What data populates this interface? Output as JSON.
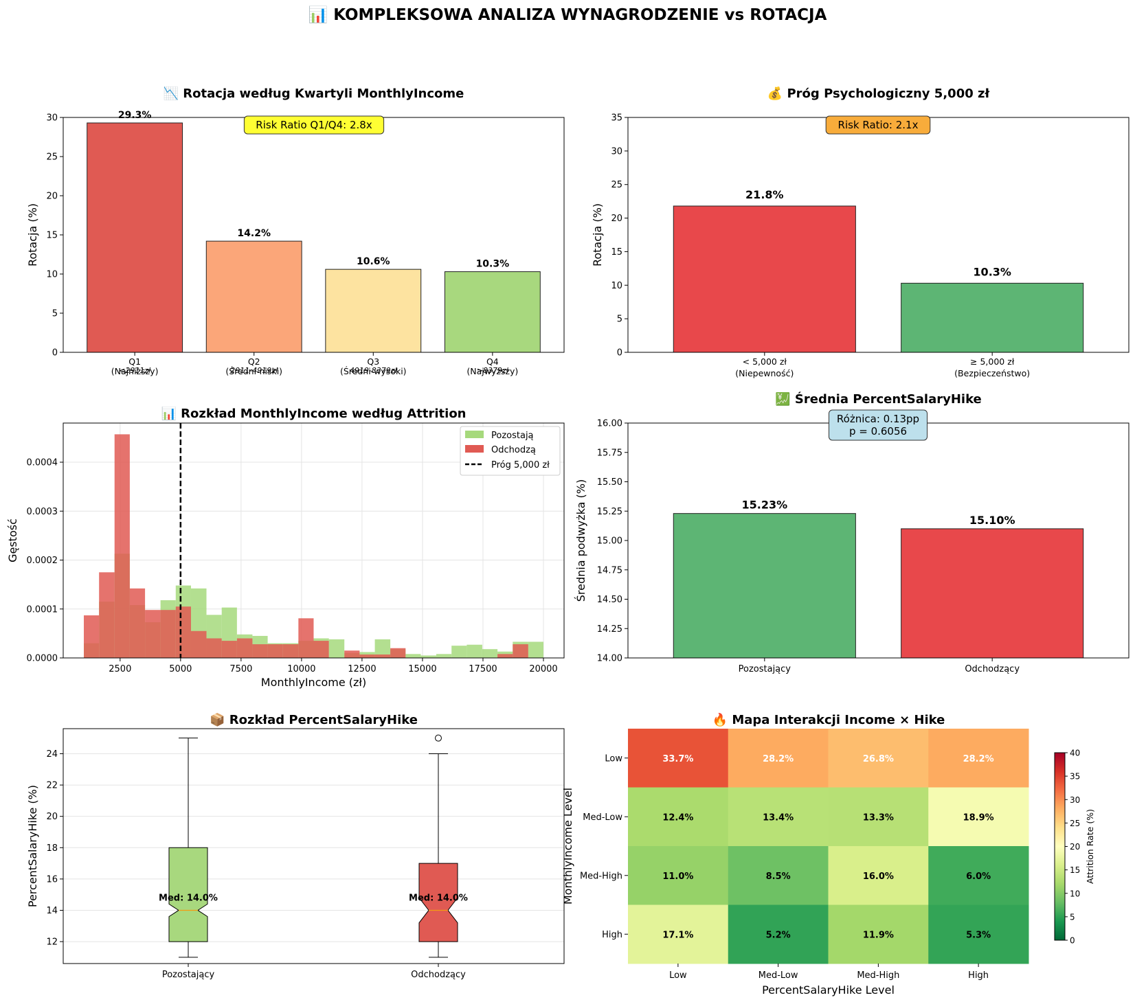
{
  "suptitle": "📊 KOMPLEKSOWA ANALIZA WYNAGRODZENIE vs ROTACJA",
  "chart_data": [
    {
      "id": "quartiles",
      "type": "bar",
      "title": "📉 Rotacja według Kwartyli MonthlyIncome",
      "ylabel": "Rotacja (%)",
      "ylim": [
        0,
        30
      ],
      "yticks": [
        0,
        5,
        10,
        15,
        20,
        25,
        30
      ],
      "categories": [
        "Q1\n(Najniższy)",
        "Q2\n(Średni-niski)",
        "Q3\n(Średni-wysoki)",
        "Q4\n(Najwyższy)"
      ],
      "sublabels": [
        "<2911zł",
        "2911-4919zł",
        "4919-8379zł",
        ">8379zł"
      ],
      "values": [
        29.3,
        14.2,
        10.6,
        10.3
      ],
      "value_labels": [
        "29.3%",
        "14.2%",
        "10.6%",
        "10.3%"
      ],
      "colors": [
        "#e05a53",
        "#fba679",
        "#fde3a0",
        "#a8d87e"
      ],
      "annotation": "Risk Ratio Q1/Q4: 2.8x",
      "annotation_color": "#ffff33"
    },
    {
      "id": "threshold",
      "type": "bar",
      "title": "💰 Próg Psychologiczny 5,000 zł",
      "ylabel": "Rotacja (%)",
      "ylim": [
        0,
        35
      ],
      "yticks": [
        0,
        5,
        10,
        15,
        20,
        25,
        30,
        35
      ],
      "categories": [
        "< 5,000 zł\n(Niepewność)",
        "≥ 5,000 zł\n(Bezpieczeństwo)"
      ],
      "values": [
        21.8,
        10.3
      ],
      "value_labels": [
        "21.8%",
        "10.3%"
      ],
      "colors": [
        "#e8484b",
        "#5db574"
      ],
      "annotation": "Risk Ratio: 2.1x",
      "annotation_color": "#f8ac3b"
    },
    {
      "id": "distribution",
      "type": "histogram",
      "title": "📊 Rozkład MonthlyIncome według Attrition",
      "xlabel": "MonthlyIncome (zł)",
      "ylabel": "Gęstość",
      "xlim": [
        0,
        21000
      ],
      "xticks": [
        2500,
        5000,
        7500,
        10000,
        12500,
        15000,
        17500,
        20000
      ],
      "ylim": [
        0,
        0.00048
      ],
      "yticks": [
        "0.0000",
        "0.0001",
        "0.0002",
        "0.0003",
        "0.0004"
      ],
      "threshold": 5000,
      "series": [
        {
          "name": "Pozostają",
          "color": "#a6d97c",
          "bins": [
            [
              1000,
              1630
            ],
            [
              1630,
              2270
            ],
            [
              2270,
              2900
            ],
            [
              2900,
              3530
            ],
            [
              3530,
              4170
            ],
            [
              4170,
              4800
            ],
            [
              4800,
              5430
            ],
            [
              5430,
              6070
            ],
            [
              6070,
              6700
            ],
            [
              6700,
              7330
            ],
            [
              7330,
              7970
            ],
            [
              7970,
              8600
            ],
            [
              8600,
              9230
            ],
            [
              9230,
              9870
            ],
            [
              9870,
              10500
            ],
            [
              10500,
              11130
            ],
            [
              11130,
              11770
            ],
            [
              11770,
              12400
            ],
            [
              12400,
              13030
            ],
            [
              13030,
              13670
            ],
            [
              13670,
              14300
            ],
            [
              14300,
              14930
            ],
            [
              14930,
              15570
            ],
            [
              15570,
              16200
            ],
            [
              16200,
              16830
            ],
            [
              16830,
              17470
            ],
            [
              17470,
              18100
            ],
            [
              18100,
              18730
            ],
            [
              18730,
              19370
            ],
            [
              19370,
              20000
            ]
          ],
          "density": [
            3e-05,
            0.000115,
            0.000213,
            0.000108,
            7.3e-05,
            0.000118,
            0.000148,
            0.000142,
            8.8e-05,
            0.000103,
            4.8e-05,
            4.5e-05,
            3e-05,
            3e-05,
            3.5e-05,
            4e-05,
            3.8e-05,
            1e-05,
            1.2e-05,
            3.8e-05,
            1.8e-05,
            8e-06,
            5e-06,
            8e-06,
            2.5e-05,
            2.7e-05,
            1.8e-05,
            1.3e-05,
            3.3e-05,
            3.3e-05
          ]
        },
        {
          "name": "Odchodzą",
          "color": "#e05a53",
          "bins": [
            [
              1000,
              1630
            ],
            [
              1630,
              2270
            ],
            [
              2270,
              2900
            ],
            [
              2900,
              3530
            ],
            [
              3530,
              4170
            ],
            [
              4170,
              4800
            ],
            [
              4800,
              5430
            ],
            [
              5430,
              6070
            ],
            [
              6070,
              6700
            ],
            [
              6700,
              7330
            ],
            [
              7330,
              7970
            ],
            [
              7970,
              8600
            ],
            [
              8600,
              9230
            ],
            [
              9230,
              9870
            ],
            [
              9870,
              10500
            ],
            [
              10500,
              11130
            ],
            [
              11130,
              11770
            ],
            [
              11770,
              12400
            ],
            [
              12400,
              13030
            ],
            [
              13030,
              13670
            ],
            [
              13670,
              14300
            ],
            [
              14300,
              14930
            ],
            [
              14930,
              15570
            ],
            [
              15570,
              16200
            ],
            [
              16200,
              16830
            ],
            [
              16830,
              17470
            ],
            [
              17470,
              18100
            ],
            [
              18100,
              18730
            ],
            [
              18730,
              19370
            ],
            [
              19370,
              20000
            ]
          ],
          "density": [
            8.7e-05,
            0.000175,
            0.000457,
            0.000142,
            9.8e-05,
            9.8e-05,
            0.000105,
            5.5e-05,
            4e-05,
            3.5e-05,
            4e-05,
            2.8e-05,
            2.8e-05,
            2.8e-05,
            8.1e-05,
            3.5e-05,
            0,
            1.5e-05,
            7e-06,
            7e-06,
            2e-05,
            0,
            0,
            0,
            0,
            0,
            0,
            8e-06,
            2.8e-05,
            0
          ]
        }
      ],
      "legend": {
        "threshold_label": "Próg 5,000 zł"
      }
    },
    {
      "id": "hike_mean",
      "type": "bar",
      "title": "💹 Średnia PercentSalaryHike",
      "ylabel": "Średnia podwyżka (%)",
      "ylim": [
        14.0,
        16.0
      ],
      "yticks": [
        "14.00",
        "14.25",
        "14.50",
        "14.75",
        "15.00",
        "15.25",
        "15.50",
        "15.75",
        "16.00"
      ],
      "categories": [
        "Pozostający",
        "Odchodzący"
      ],
      "values": [
        15.23,
        15.1
      ],
      "value_labels": [
        "15.23%",
        "15.10%"
      ],
      "colors": [
        "#5db574",
        "#e8484b"
      ],
      "annotation": "Różnica: 0.13pp\np = 0.6056",
      "annotation_color": "#bde0ec"
    },
    {
      "id": "hike_box",
      "type": "box",
      "title": "📦 Rozkład PercentSalaryHike",
      "ylabel": "PercentSalaryHike (%)",
      "ylim": [
        10.6,
        25.6
      ],
      "yticks": [
        12,
        14,
        16,
        18,
        20,
        22,
        24
      ],
      "categories": [
        "Pozostający",
        "Odchodzący"
      ],
      "boxes": [
        {
          "min": 11,
          "q1": 12,
          "median": 14,
          "q3": 18,
          "max": 25,
          "notch_lo": 13.6,
          "notch_hi": 14.4,
          "outliers": [],
          "color": "#a8d87e",
          "label": "Med: 14.0%"
        },
        {
          "min": 11,
          "q1": 12,
          "median": 14,
          "q3": 17,
          "max": 24,
          "notch_lo": 13.2,
          "notch_hi": 14.8,
          "outliers": [
            25
          ],
          "color": "#e05a53",
          "label": "Med: 14.0%"
        }
      ]
    },
    {
      "id": "heatmap",
      "type": "heatmap",
      "title": "🔥 Mapa Interakcji Income × Hike",
      "xlabel": "PercentSalaryHike Level",
      "ylabel": "MonthlyIncome Level",
      "x_categories": [
        "Low",
        "Med-Low",
        "Med-High",
        "High"
      ],
      "y_categories": [
        "Low",
        "Med-Low",
        "Med-High",
        "High"
      ],
      "values": [
        [
          33.7,
          28.2,
          26.8,
          28.2
        ],
        [
          12.4,
          13.4,
          13.3,
          18.9
        ],
        [
          11.0,
          8.5,
          16.0,
          6.0
        ],
        [
          17.1,
          5.2,
          11.9,
          5.3
        ]
      ],
      "vmin": 0,
      "vmax": 40,
      "colorbar_label": "Attrition Rate (%)",
      "colorbar_ticks": [
        0,
        5,
        10,
        15,
        20,
        25,
        30,
        35,
        40
      ]
    }
  ]
}
